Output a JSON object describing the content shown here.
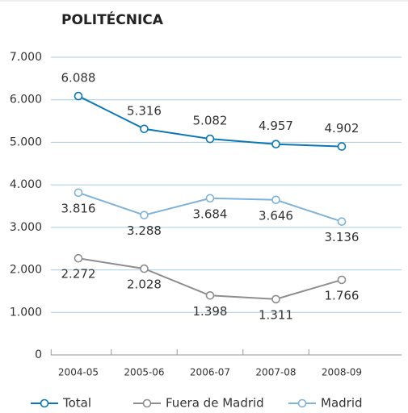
{
  "chart_data": {
    "type": "line",
    "title": "POLITÉCNICA",
    "categories": [
      "2004-05",
      "2005-06",
      "2006-07",
      "2007-08",
      "2008-09"
    ],
    "series": [
      {
        "name": "Total",
        "color": "#0b78b5",
        "values": [
          6088,
          5316,
          5082,
          4957,
          4902
        ],
        "value_labels": [
          "6.088",
          "5.316",
          "5.082",
          "4.957",
          "4.902"
        ]
      },
      {
        "name": "Fuera de Madrid",
        "color": "#8e8e8e",
        "values": [
          2272,
          2028,
          1398,
          1311,
          1766
        ],
        "value_labels": [
          "2.272",
          "2.028",
          "1.398",
          "1.311",
          "1.766"
        ]
      },
      {
        "name": "Madrid",
        "color": "#80b3d9",
        "values": [
          3816,
          3288,
          3684,
          3646,
          3136
        ],
        "value_labels": [
          "3.816",
          "3.288",
          "3.684",
          "3.646",
          "3.136"
        ]
      }
    ],
    "ylim": [
      0,
      7000
    ],
    "yticks": [
      0,
      {
        "value": 1000,
        "label": "1.000"
      },
      {
        "value": 2000,
        "label": "2.000"
      },
      {
        "value": 3000,
        "label": "3.000"
      },
      {
        "value": 4000,
        "label": "4.000"
      },
      {
        "value": 5000,
        "label": "5.000"
      },
      {
        "value": 6000,
        "label": "6.000"
      },
      {
        "value": 7000,
        "label": "7.000"
      }
    ],
    "grid": true,
    "legend": "bottom"
  }
}
